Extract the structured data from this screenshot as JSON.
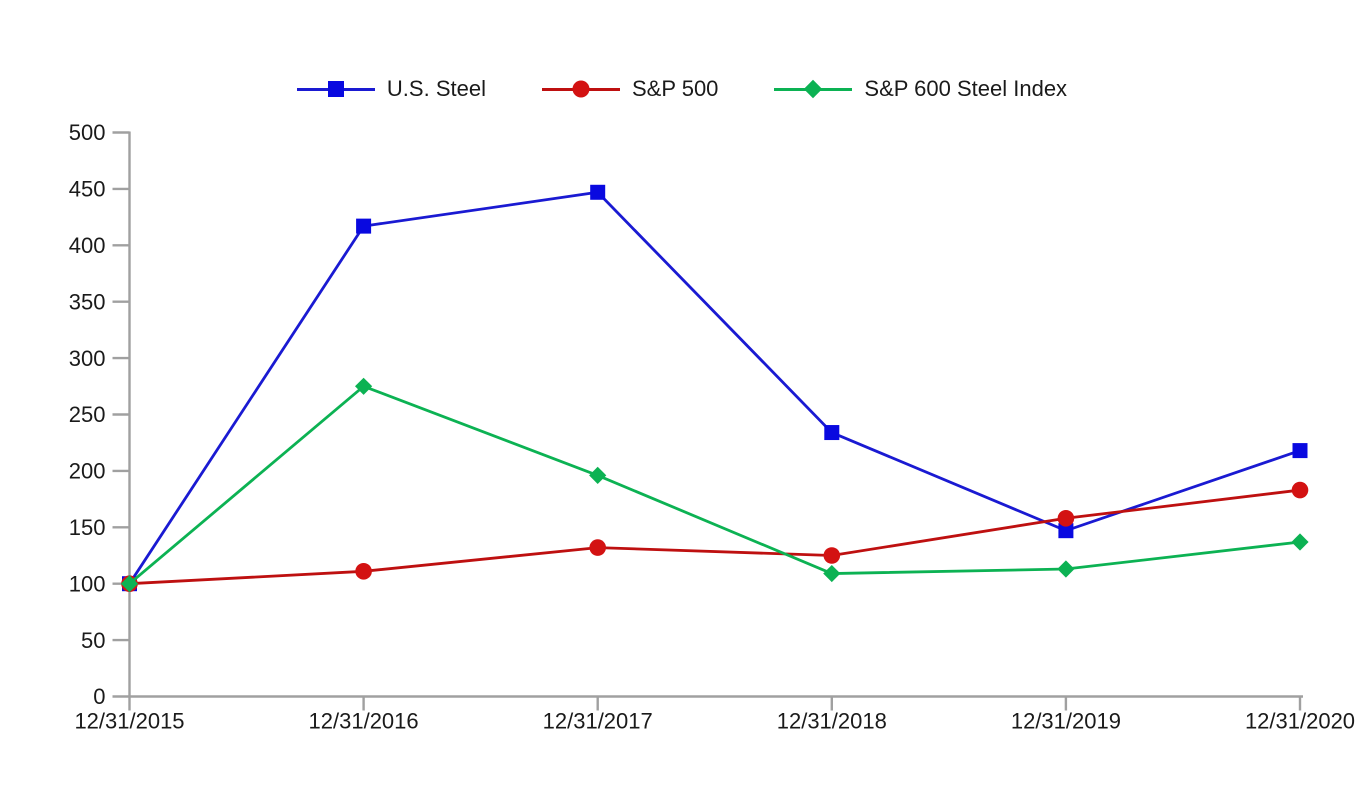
{
  "chart_data": {
    "type": "line",
    "title": "",
    "categories": [
      "12/31/2015",
      "12/31/2016",
      "12/31/2017",
      "12/31/2018",
      "12/31/2019",
      "12/31/2020"
    ],
    "series": [
      {
        "name": "U.S. Steel",
        "marker": "square",
        "line_color": "#1a1ad2",
        "marker_color": "#0909e0",
        "values": [
          100,
          417,
          447,
          234,
          147,
          218
        ]
      },
      {
        "name": "S&P 500",
        "marker": "circle",
        "line_color": "#be1010",
        "marker_color": "#d31212",
        "values": [
          100,
          111,
          132,
          125,
          158,
          183
        ]
      },
      {
        "name": "S&P 600 Steel Index",
        "marker": "diamond",
        "line_color": "#0cb253",
        "marker_color": "#0cb253",
        "values": [
          100,
          275,
          196,
          109,
          113,
          137
        ]
      }
    ],
    "y_ticks": [
      0,
      50,
      100,
      150,
      200,
      250,
      300,
      350,
      400,
      450,
      500
    ],
    "ylim": [
      0,
      500
    ],
    "xlabel": "",
    "ylabel": "",
    "grid": false,
    "legend_position": "top",
    "axis_color": "#a0a0a0",
    "text_color": "#1a1a1a"
  }
}
